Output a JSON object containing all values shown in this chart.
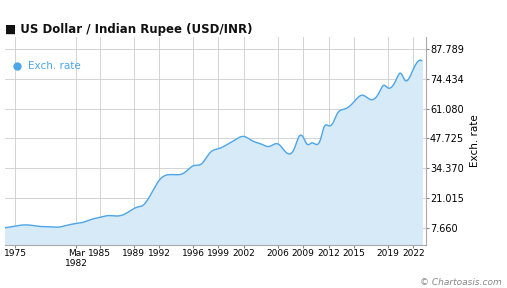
{
  "title": "US Dollar / Indian Rupee (USD/INR)",
  "legend_label": "Exch. rate",
  "ylabel_right": "Exch. rate",
  "watermark": "© Chartoasis.com",
  "line_color": "#4da6e8",
  "fill_color": "#d6eaf8",
  "background_color": "#ffffff",
  "grid_color": "#cccccc",
  "title_color": "#111111",
  "legend_color": "#4da6e8",
  "yticks": [
    7.66,
    21.015,
    34.37,
    47.725,
    61.08,
    74.434,
    87.789
  ],
  "ytick_labels": [
    "7.660",
    "21.015",
    "34.370",
    "47.725",
    "61.080",
    "74.434",
    "87.789"
  ],
  "xtick_years": [
    1975,
    1982.2,
    1985,
    1989,
    1992,
    1996,
    1999,
    2002,
    2006,
    2009,
    2012,
    2015,
    2019,
    2022
  ],
  "xtick_labels": [
    "1975",
    "Mar1982",
    "1985",
    "1989",
    "1992",
    "1996",
    "1999",
    "2002",
    "2006",
    "2009",
    "2012",
    "2015",
    "2019",
    "2022"
  ],
  "xmin": 1973.8,
  "xmax": 2023.5,
  "ymin": 0,
  "ymax": 93,
  "data_years": [
    1973,
    1974,
    1975,
    1976,
    1977,
    1978,
    1979,
    1980,
    1981,
    1982,
    1983,
    1984,
    1985,
    1986,
    1987,
    1988,
    1989,
    1989.5,
    1990,
    1991,
    1991.5,
    1992,
    1993,
    1994,
    1995,
    1996,
    1997,
    1998,
    1999,
    2000,
    2001,
    2002,
    2003,
    2004,
    2005,
    2006,
    2007,
    2008,
    2008.5,
    2009,
    2009.5,
    2010,
    2011,
    2011.5,
    2012,
    2012.5,
    2013,
    2013.5,
    2014,
    2015,
    2016,
    2017,
    2018,
    2018.5,
    2019,
    2020,
    2020.5,
    2021,
    2022,
    2022.5,
    2023
  ],
  "data_values": [
    7.7,
    7.75,
    8.4,
    8.9,
    8.7,
    8.2,
    8.1,
    7.9,
    8.65,
    9.45,
    10.1,
    11.4,
    12.35,
    13.1,
    12.9,
    13.9,
    16.2,
    17.0,
    17.5,
    22.5,
    25.9,
    28.9,
    31.4,
    31.4,
    32.4,
    35.4,
    36.3,
    41.3,
    43.1,
    44.9,
    47.2,
    48.6,
    46.6,
    45.3,
    44.1,
    45.3,
    41.4,
    43.5,
    48.5,
    48.3,
    45.0,
    45.7,
    46.7,
    53.0,
    53.4,
    54.5,
    58.6,
    60.5,
    61.0,
    64.1,
    67.1,
    65.1,
    68.4,
    71.5,
    70.4,
    74.1,
    77.0,
    73.9,
    78.6,
    82.0,
    82.6
  ]
}
